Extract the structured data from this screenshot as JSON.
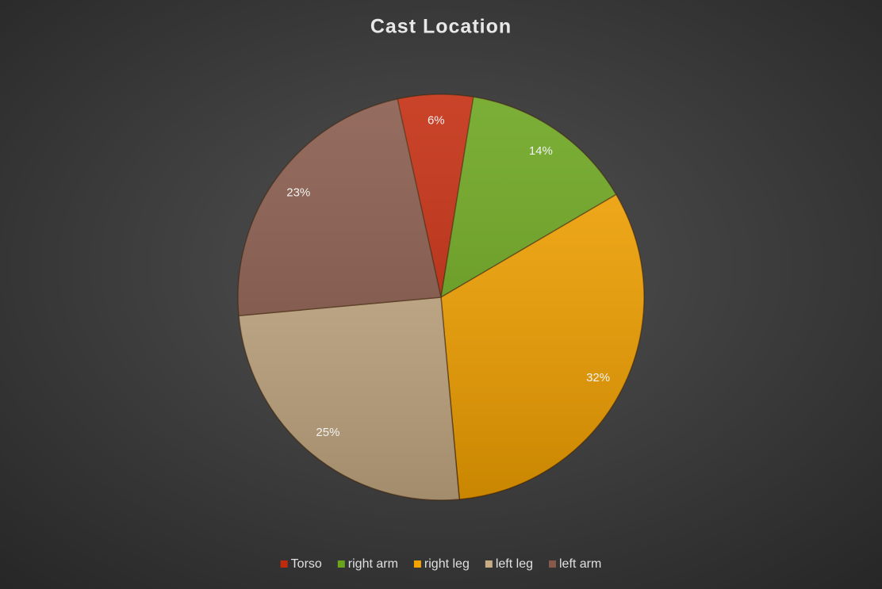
{
  "chart_data": {
    "type": "pie",
    "title": "Cast Location",
    "categories": [
      "Torso",
      "right arm",
      "right leg",
      "left leg",
      "left arm"
    ],
    "values": [
      6,
      14,
      32,
      25,
      23
    ],
    "value_labels": [
      "6%",
      "14%",
      "32%",
      "25%",
      "23%"
    ],
    "colors": [
      "#c22a0c",
      "#6aa41c",
      "#f5a300",
      "#c6ab84",
      "#87594a"
    ],
    "legend": "bottom"
  }
}
